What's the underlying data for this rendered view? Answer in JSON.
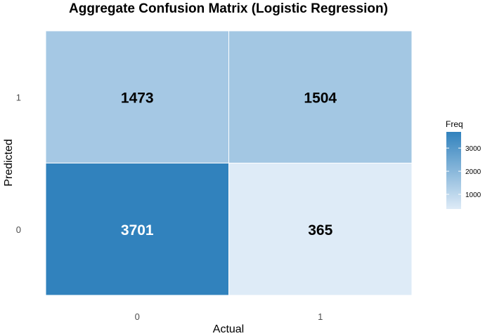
{
  "chart_data": {
    "type": "heatmap",
    "title": "Aggregate Confusion Matrix (Logistic Regression)",
    "xlabel": "Actual",
    "ylabel": "Predicted",
    "x_categories": [
      "0",
      "1"
    ],
    "y_categories": [
      "0",
      "1"
    ],
    "cells": [
      {
        "actual": "0",
        "predicted": "0",
        "value": 3701
      },
      {
        "actual": "1",
        "predicted": "0",
        "value": 365
      },
      {
        "actual": "0",
        "predicted": "1",
        "value": 1473
      },
      {
        "actual": "1",
        "predicted": "1",
        "value": 1504
      }
    ],
    "legend": {
      "title": "Freq",
      "ticks": [
        "1000",
        "2000",
        "3000"
      ],
      "range": [
        365,
        3701
      ],
      "placement": "right"
    },
    "colors": {
      "low": "#deebf7",
      "high": "#3182bd",
      "text_dark": "#000000",
      "text_light": "#ffffff"
    },
    "grid": false
  }
}
